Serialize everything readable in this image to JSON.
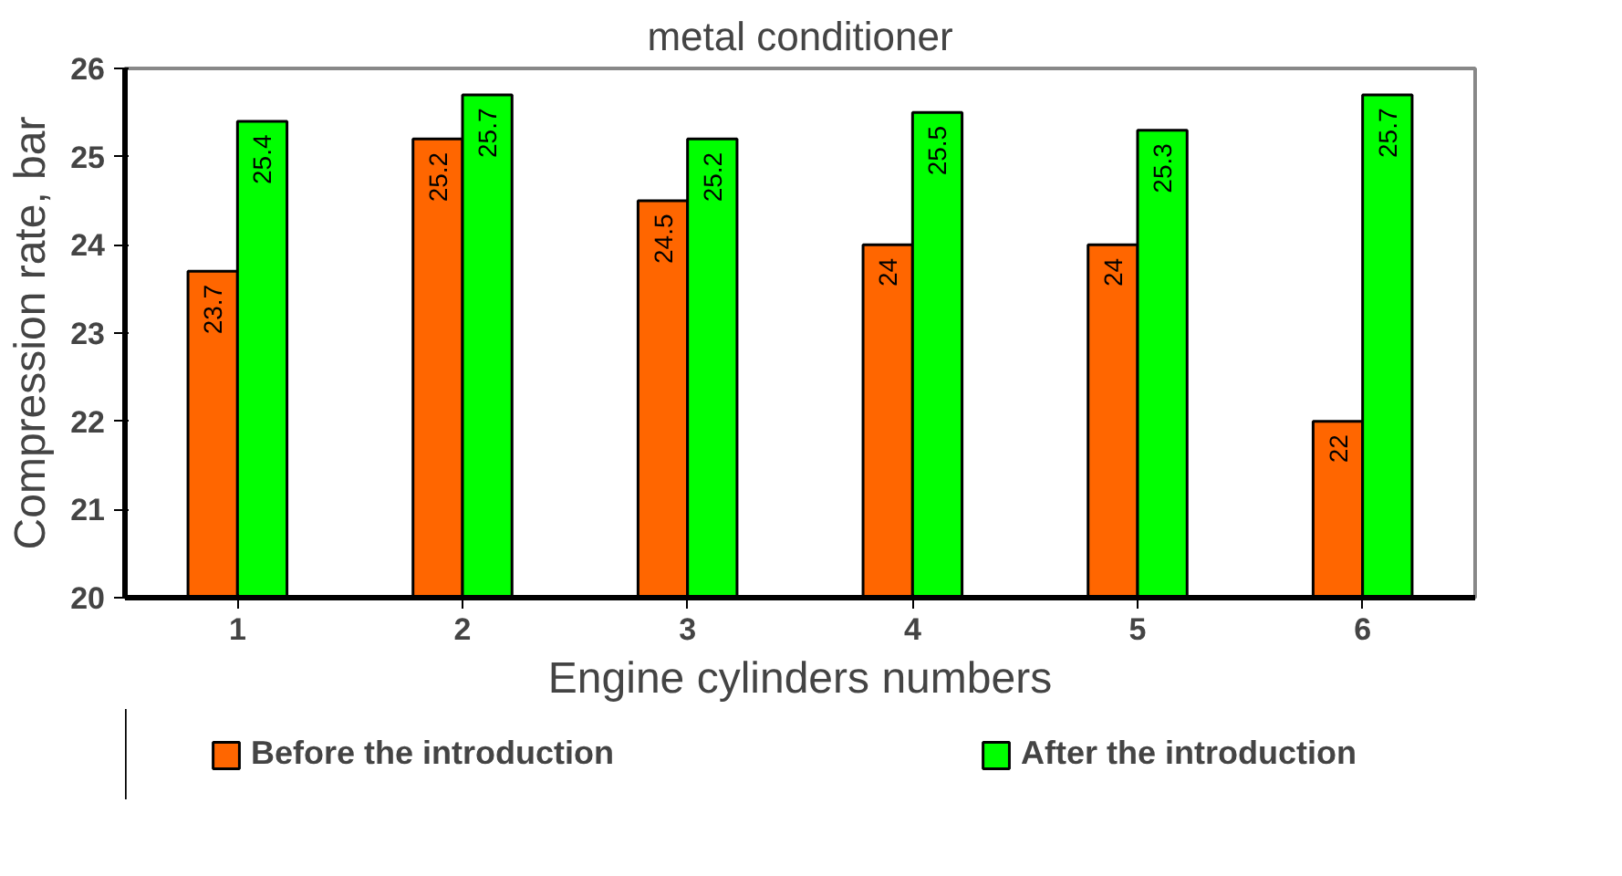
{
  "chart_data": {
    "type": "bar",
    "title": "metal conditioner",
    "xlabel": "Engine cylinders numbers",
    "ylabel": "Compression rate, bar",
    "categories": [
      "1",
      "2",
      "3",
      "4",
      "5",
      "6"
    ],
    "series": [
      {
        "name": "Before the introduction",
        "color": "#ff6600",
        "values": [
          23.7,
          25.2,
          24.5,
          24,
          24,
          22
        ]
      },
      {
        "name": "After the introduction",
        "color": "#00ff00",
        "values": [
          25.4,
          25.7,
          25.2,
          25.5,
          25.3,
          25.7
        ]
      }
    ],
    "ylim": [
      20,
      26
    ],
    "yticks": [
      20,
      21,
      22,
      23,
      24,
      25,
      26
    ],
    "data_labels": true,
    "grid": false,
    "legend": "bottom"
  }
}
